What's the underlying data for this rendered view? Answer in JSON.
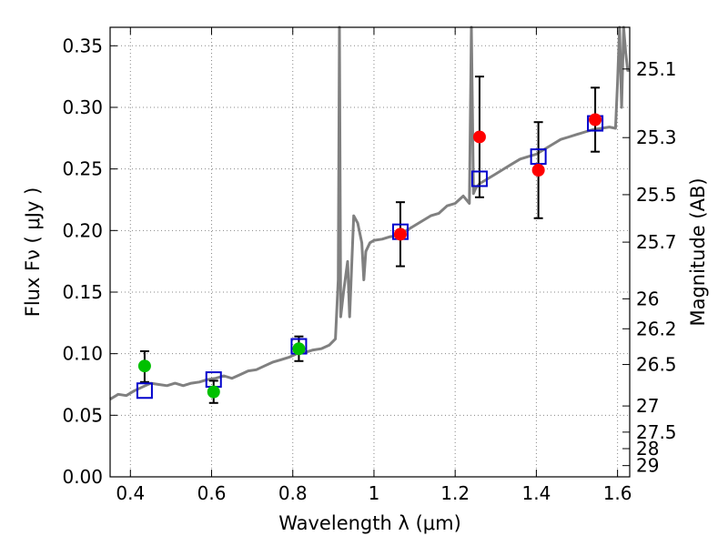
{
  "chart_data": {
    "type": "scatter",
    "xlim": [
      0.35,
      1.63
    ],
    "ylim": [
      0.0,
      0.365
    ],
    "grid": true,
    "xlabel": "Wavelength  λ (μm)",
    "ylabel": "Flux  Fν  ( μJy )",
    "y2label": "Magnitude (AB)",
    "x_ticks": [
      0.4,
      0.6,
      0.8,
      1.0,
      1.2,
      1.4,
      1.6
    ],
    "x_tick_labels": [
      "0.4",
      "0.6",
      "0.8",
      "1",
      "1.2",
      "1.4",
      "1.6"
    ],
    "y_ticks": [
      0.0,
      0.05,
      0.1,
      0.15,
      0.2,
      0.25,
      0.3,
      0.35
    ],
    "y_tick_labels": [
      "0.00",
      "0.05",
      "0.10",
      "0.15",
      "0.20",
      "0.25",
      "0.30",
      "0.35"
    ],
    "mag_ticks": [
      "25.1",
      "25.3",
      "25.5",
      "25.7",
      "26",
      "26.2",
      "26.5",
      "27",
      "27.5",
      "28",
      "29"
    ],
    "colors": {
      "spectrum": "#808080",
      "model_box": "#0000cc",
      "green": "#00c000",
      "red": "#ff0000",
      "errorbar": "#000000",
      "grid": "#888888"
    },
    "series": [
      {
        "kind": "spectrum",
        "x": [
          0.35,
          0.37,
          0.39,
          0.41,
          0.43,
          0.45,
          0.47,
          0.49,
          0.51,
          0.53,
          0.55,
          0.57,
          0.59,
          0.61,
          0.63,
          0.65,
          0.67,
          0.69,
          0.71,
          0.73,
          0.75,
          0.77,
          0.79,
          0.81,
          0.83,
          0.85,
          0.87,
          0.89,
          0.905,
          0.912,
          0.915,
          0.918,
          0.925,
          0.935,
          0.94,
          0.95,
          0.96,
          0.97,
          0.975,
          0.98,
          0.99,
          1.0,
          1.02,
          1.04,
          1.06,
          1.08,
          1.1,
          1.12,
          1.14,
          1.16,
          1.18,
          1.2,
          1.22,
          1.235,
          1.24,
          1.245,
          1.25,
          1.26,
          1.28,
          1.3,
          1.32,
          1.34,
          1.36,
          1.38,
          1.4,
          1.42,
          1.44,
          1.46,
          1.48,
          1.5,
          1.52,
          1.54,
          1.56,
          1.58,
          1.595,
          1.6,
          1.605,
          1.61,
          1.615,
          1.62,
          1.625,
          1.63
        ],
        "y": [
          0.063,
          0.067,
          0.066,
          0.07,
          0.073,
          0.076,
          0.075,
          0.074,
          0.076,
          0.074,
          0.076,
          0.077,
          0.079,
          0.08,
          0.082,
          0.08,
          0.083,
          0.086,
          0.087,
          0.09,
          0.093,
          0.095,
          0.097,
          0.1,
          0.101,
          0.103,
          0.104,
          0.107,
          0.112,
          0.16,
          0.365,
          0.13,
          0.15,
          0.175,
          0.13,
          0.212,
          0.206,
          0.19,
          0.16,
          0.183,
          0.19,
          0.192,
          0.193,
          0.195,
          0.196,
          0.2,
          0.204,
          0.208,
          0.212,
          0.214,
          0.22,
          0.222,
          0.228,
          0.222,
          0.365,
          0.23,
          0.234,
          0.238,
          0.242,
          0.246,
          0.25,
          0.254,
          0.258,
          0.26,
          0.262,
          0.266,
          0.27,
          0.274,
          0.276,
          0.278,
          0.28,
          0.282,
          0.283,
          0.284,
          0.283,
          0.32,
          0.365,
          0.3,
          0.365,
          0.345,
          0.33,
          0.33
        ]
      },
      {
        "kind": "model_boxes",
        "x": [
          0.435,
          0.605,
          0.815,
          1.065,
          1.26,
          1.405,
          1.545
        ],
        "y": [
          0.07,
          0.079,
          0.106,
          0.199,
          0.242,
          0.26,
          0.287
        ]
      },
      {
        "kind": "observed_green",
        "x": [
          0.435,
          0.605,
          0.815
        ],
        "y": [
          0.09,
          0.069,
          0.104
        ],
        "err_low": [
          0.013,
          0.009,
          0.01
        ],
        "err_high": [
          0.012,
          0.009,
          0.01
        ]
      },
      {
        "kind": "observed_red",
        "x": [
          1.065,
          1.26,
          1.405,
          1.545
        ],
        "y": [
          0.197,
          0.276,
          0.249,
          0.29
        ],
        "err_low": [
          0.026,
          0.049,
          0.039,
          0.026
        ],
        "err_high": [
          0.026,
          0.049,
          0.039,
          0.026
        ]
      }
    ]
  }
}
